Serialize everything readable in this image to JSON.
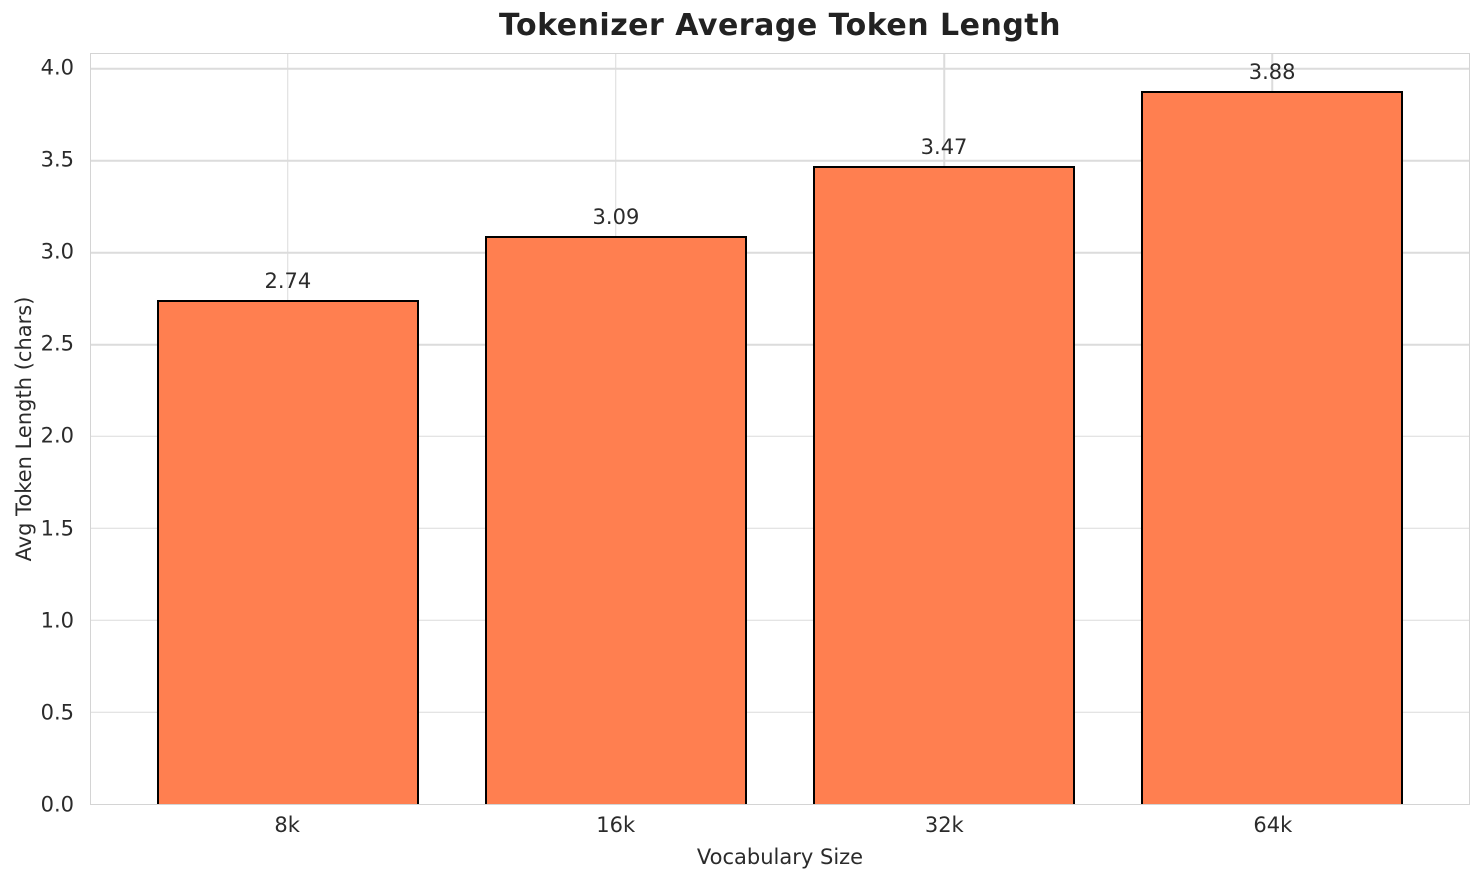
{
  "chart_data": {
    "type": "bar",
    "title": "Tokenizer Average Token Length",
    "xlabel": "Vocabulary Size",
    "ylabel": "Avg Token Length (chars)",
    "categories": [
      "8k",
      "16k",
      "32k",
      "64k"
    ],
    "values": [
      2.74,
      3.09,
      3.47,
      3.88
    ],
    "value_labels": [
      "2.74",
      "3.09",
      "3.47",
      "3.88"
    ],
    "yticks": [
      {
        "value": 0.0,
        "label": "0.0"
      },
      {
        "value": 0.5,
        "label": "0.5"
      },
      {
        "value": 1.0,
        "label": "1.0"
      },
      {
        "value": 1.5,
        "label": "1.5"
      },
      {
        "value": 2.0,
        "label": "2.0"
      },
      {
        "value": 2.5,
        "label": "2.5"
      },
      {
        "value": 3.0,
        "label": "3.0"
      },
      {
        "value": 3.5,
        "label": "3.5"
      },
      {
        "value": 4.0,
        "label": "4.0"
      }
    ],
    "ylim": [
      0,
      4.081
    ],
    "xlim": [
      -0.6,
      3.6
    ],
    "bar_width": 0.8,
    "grid": true,
    "legend": "none",
    "bar_color": "#FF7F50",
    "bar_edge_color": "#000000",
    "grid_color": "#dcdcdc",
    "text_color": "#2b2b2b",
    "title_color": "#222222"
  }
}
